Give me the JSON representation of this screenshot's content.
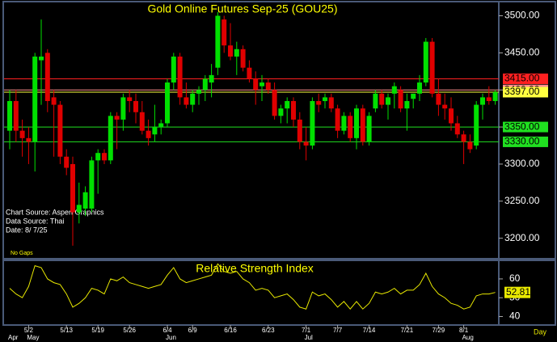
{
  "chart_data": [
    {
      "type": "candlestick",
      "title": "Gold Online Futures Sep-25 (GOU25)",
      "notes": [
        "Chart Source: Aspen Graphics",
        "Data Source: Thai",
        "Date:  8/ 7/25",
        "No Gaps"
      ],
      "up_color": "#00e000",
      "down_color": "#e00000",
      "categories": [
        null,
        null,
        null,
        "5/2",
        null,
        null,
        null,
        null,
        null,
        "5/13",
        null,
        null,
        null,
        null,
        "5/19",
        null,
        null,
        null,
        null,
        "5/26",
        null,
        null,
        null,
        null,
        null,
        "6/4",
        null,
        null,
        null,
        "6/9",
        null,
        null,
        null,
        null,
        null,
        "6/16",
        null,
        null,
        null,
        null,
        null,
        "6/23",
        null,
        null,
        null,
        null,
        null,
        "7/1",
        null,
        null,
        null,
        null,
        "7/7",
        null,
        null,
        null,
        null,
        "7/14",
        null,
        null,
        null,
        null,
        null,
        "7/21",
        null,
        null,
        null,
        null,
        "7/29",
        null,
        null,
        null,
        "8/1",
        null,
        null,
        null,
        null,
        null
      ],
      "months": [
        "Apr",
        null,
        null,
        "May",
        null,
        null,
        null,
        null,
        null,
        null,
        null,
        null,
        null,
        null,
        null,
        null,
        null,
        null,
        null,
        null,
        null,
        null,
        null,
        null,
        null,
        "Jun",
        null,
        null,
        null,
        null,
        null,
        null,
        null,
        null,
        null,
        null,
        null,
        null,
        null,
        null,
        null,
        null,
        null,
        null,
        null,
        null,
        null,
        "Jul",
        null,
        null,
        null,
        null,
        null,
        null,
        null,
        null,
        null,
        null,
        null,
        null,
        null,
        null,
        null,
        null,
        null,
        null,
        null,
        null,
        null,
        null,
        null,
        null,
        "Aug",
        null,
        null,
        null,
        null,
        null
      ],
      "ohlc": [
        [
          3345,
          3400,
          3320,
          3385
        ],
        [
          3385,
          3400,
          3330,
          3345
        ],
        [
          3345,
          3360,
          3310,
          3335
        ],
        [
          3335,
          3350,
          3300,
          3330
        ],
        [
          3330,
          3450,
          3290,
          3445
        ],
        [
          3440,
          3495,
          3380,
          3445
        ],
        [
          3450,
          3455,
          3370,
          3385
        ],
        [
          3390,
          3400,
          3310,
          3380
        ],
        [
          3380,
          3385,
          3300,
          3310
        ],
        [
          3310,
          3320,
          3285,
          3295
        ],
        [
          3300,
          3310,
          3190,
          3235
        ],
        [
          3235,
          3275,
          3220,
          3245
        ],
        [
          3240,
          3270,
          3230,
          3262
        ],
        [
          3240,
          3310,
          3235,
          3305
        ],
        [
          3305,
          3320,
          3260,
          3315
        ],
        [
          3315,
          3320,
          3300,
          3305
        ],
        [
          3305,
          3370,
          3300,
          3365
        ],
        [
          3365,
          3370,
          3320,
          3360
        ],
        [
          3360,
          3395,
          3345,
          3390
        ],
        [
          3390,
          3400,
          3370,
          3385
        ],
        [
          3385,
          3395,
          3355,
          3370
        ],
        [
          3370,
          3385,
          3340,
          3345
        ],
        [
          3345,
          3360,
          3325,
          3335
        ],
        [
          3340,
          3380,
          3330,
          3350
        ],
        [
          3350,
          3360,
          3340,
          3355
        ],
        [
          3355,
          3415,
          3350,
          3410
        ],
        [
          3410,
          3450,
          3400,
          3445
        ],
        [
          3445,
          3450,
          3380,
          3390
        ],
        [
          3390,
          3410,
          3375,
          3380
        ],
        [
          3380,
          3400,
          3370,
          3395
        ],
        [
          3395,
          3405,
          3380,
          3400
        ],
        [
          3400,
          3420,
          3385,
          3415
        ],
        [
          3410,
          3435,
          3390,
          3420
        ],
        [
          3430,
          3505,
          3420,
          3500
        ],
        [
          3495,
          3500,
          3450,
          3460
        ],
        [
          3460,
          3490,
          3440,
          3445
        ],
        [
          3445,
          3465,
          3420,
          3455
        ],
        [
          3455,
          3460,
          3425,
          3430
        ],
        [
          3430,
          3440,
          3410,
          3415
        ],
        [
          3415,
          3425,
          3380,
          3400
        ],
        [
          3405,
          3420,
          3385,
          3410
        ],
        [
          3410,
          3415,
          3395,
          3400
        ],
        [
          3400,
          3410,
          3360,
          3365
        ],
        [
          3365,
          3380,
          3355,
          3375
        ],
        [
          3375,
          3390,
          3355,
          3385
        ],
        [
          3385,
          3390,
          3350,
          3360
        ],
        [
          3360,
          3370,
          3320,
          3330
        ],
        [
          3330,
          3350,
          3305,
          3325
        ],
        [
          3325,
          3390,
          3320,
          3385
        ],
        [
          3385,
          3395,
          3370,
          3380
        ],
        [
          3385,
          3395,
          3375,
          3390
        ],
        [
          3390,
          3395,
          3370,
          3375
        ],
        [
          3375,
          3380,
          3335,
          3345
        ],
        [
          3345,
          3370,
          3340,
          3365
        ],
        [
          3365,
          3370,
          3330,
          3335
        ],
        [
          3335,
          3380,
          3320,
          3375
        ],
        [
          3375,
          3380,
          3325,
          3330
        ],
        [
          3330,
          3370,
          3325,
          3365
        ],
        [
          3375,
          3400,
          3370,
          3395
        ],
        [
          3395,
          3400,
          3375,
          3380
        ],
        [
          3380,
          3395,
          3360,
          3390
        ],
        [
          3395,
          3410,
          3375,
          3405
        ],
        [
          3400,
          3405,
          3370,
          3375
        ],
        [
          3375,
          3395,
          3345,
          3385
        ],
        [
          3388,
          3395,
          3375,
          3395
        ],
        [
          3395,
          3420,
          3385,
          3410
        ],
        [
          3410,
          3470,
          3405,
          3465
        ],
        [
          3465,
          3470,
          3390,
          3395
        ],
        [
          3395,
          3415,
          3365,
          3380
        ],
        [
          3380,
          3395,
          3360,
          3375
        ],
        [
          3375,
          3390,
          3345,
          3355
        ],
        [
          3355,
          3365,
          3335,
          3340
        ],
        [
          3340,
          3345,
          3300,
          3330
        ],
        [
          3330,
          3340,
          3315,
          3320
        ],
        [
          3325,
          3385,
          3320,
          3380
        ],
        [
          3380,
          3395,
          3360,
          3390
        ],
        [
          3390,
          3405,
          3380,
          3385
        ],
        [
          3385,
          3400,
          3380,
          3397
        ]
      ],
      "levels": [
        {
          "value": 3415,
          "label": "3415.00",
          "color": "#ff2020"
        },
        {
          "value": 3400,
          "label": "3400.00",
          "color": "#ff9090"
        },
        {
          "value": 3397,
          "label": "3397.00",
          "color": "#ffff40"
        },
        {
          "value": 3350,
          "label": "3350.00",
          "color": "#20e020"
        },
        {
          "value": 3330,
          "label": "3330.00",
          "color": "#20e020"
        }
      ],
      "ylim": [
        3180,
        3518
      ],
      "yticks": [
        {
          "value": 3200,
          "label": "3200.00"
        },
        {
          "value": 3250,
          "label": "3250.00"
        },
        {
          "value": 3300,
          "label": "3300.00"
        },
        {
          "value": 3350,
          "label": "3350.00"
        },
        {
          "value": 3400,
          "label": "3400.00"
        },
        {
          "value": 3450,
          "label": "3450.00"
        },
        {
          "value": 3500,
          "label": "3500.00"
        }
      ],
      "xlabel": "Day"
    },
    {
      "type": "line",
      "title": "Relative Strength Index",
      "color": "#e8e800",
      "values": [
        55,
        52,
        50,
        56,
        67,
        66,
        60,
        58,
        57,
        52,
        45,
        47,
        50,
        55,
        54,
        52,
        60,
        59,
        61,
        58,
        57,
        56,
        55,
        56,
        57,
        62,
        66,
        60,
        58,
        59,
        60,
        61,
        62,
        68,
        64,
        63,
        64,
        60,
        58,
        54,
        55,
        54,
        50,
        51,
        52,
        49,
        45,
        44,
        53,
        51,
        52,
        49,
        45,
        48,
        44,
        48,
        44,
        47,
        53,
        52,
        53,
        55,
        52,
        54,
        54,
        57,
        63,
        56,
        52,
        50,
        47,
        46,
        44,
        45,
        51,
        52,
        52,
        52.81
      ],
      "ylim": [
        35.5,
        69
      ],
      "yticks": [
        40,
        50,
        60
      ]
    }
  ]
}
